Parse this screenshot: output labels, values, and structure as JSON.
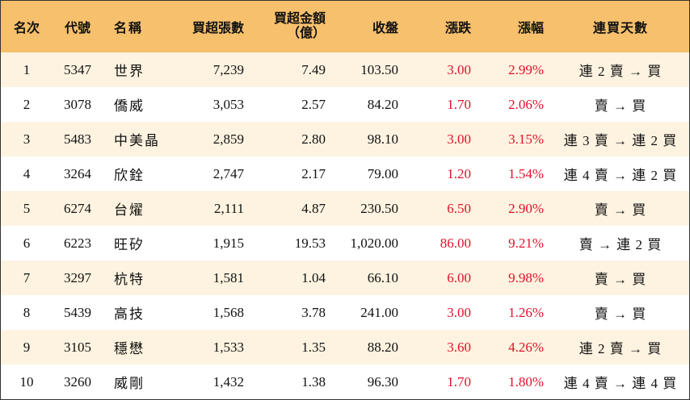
{
  "headers": {
    "rank": "名次",
    "code": "代號",
    "name": "名稱",
    "volume": "買超張數",
    "amount_line1": "買超金額",
    "amount_line2": "（億）",
    "close": "收盤",
    "change": "漲跌",
    "pct": "漲幅",
    "days": "連買天數"
  },
  "rows": [
    {
      "rank": "1",
      "code": "5347",
      "name": "世界",
      "volume": "7,239",
      "amount": "7.49",
      "close": "103.50",
      "change": "3.00",
      "pct": "2.99%",
      "days": "連 2 賣 → 買"
    },
    {
      "rank": "2",
      "code": "3078",
      "name": "僑威",
      "volume": "3,053",
      "amount": "2.57",
      "close": "84.20",
      "change": "1.70",
      "pct": "2.06%",
      "days": "賣 → 買"
    },
    {
      "rank": "3",
      "code": "5483",
      "name": "中美晶",
      "volume": "2,859",
      "amount": "2.80",
      "close": "98.10",
      "change": "3.00",
      "pct": "3.15%",
      "days": "連 3 賣 → 連 2 買"
    },
    {
      "rank": "4",
      "code": "3264",
      "name": "欣銓",
      "volume": "2,747",
      "amount": "2.17",
      "close": "79.00",
      "change": "1.20",
      "pct": "1.54%",
      "days": "連 4 賣 → 連 2 買"
    },
    {
      "rank": "5",
      "code": "6274",
      "name": "台燿",
      "volume": "2,111",
      "amount": "4.87",
      "close": "230.50",
      "change": "6.50",
      "pct": "2.90%",
      "days": "賣 → 買"
    },
    {
      "rank": "6",
      "code": "6223",
      "name": "旺矽",
      "volume": "1,915",
      "amount": "19.53",
      "close": "1,020.00",
      "change": "86.00",
      "pct": "9.21%",
      "days": "賣 → 連 2 買"
    },
    {
      "rank": "7",
      "code": "3297",
      "name": "杭特",
      "volume": "1,581",
      "amount": "1.04",
      "close": "66.10",
      "change": "6.00",
      "pct": "9.98%",
      "days": "賣 → 買"
    },
    {
      "rank": "8",
      "code": "5439",
      "name": "高技",
      "volume": "1,568",
      "amount": "3.78",
      "close": "241.00",
      "change": "3.00",
      "pct": "1.26%",
      "days": "賣 → 買"
    },
    {
      "rank": "9",
      "code": "3105",
      "name": "穩懋",
      "volume": "1,533",
      "amount": "1.35",
      "close": "88.20",
      "change": "3.60",
      "pct": "4.26%",
      "days": "連 2 賣 → 買"
    },
    {
      "rank": "10",
      "code": "3260",
      "name": "威剛",
      "volume": "1,432",
      "amount": "1.38",
      "close": "96.30",
      "change": "1.70",
      "pct": "1.80%",
      "days": "連 4 賣 → 連 4 買"
    }
  ],
  "colors": {
    "header_bg": "#f7c06c",
    "odd_row_bg": "#fdf3e0",
    "up_red": "#e0102a"
  }
}
